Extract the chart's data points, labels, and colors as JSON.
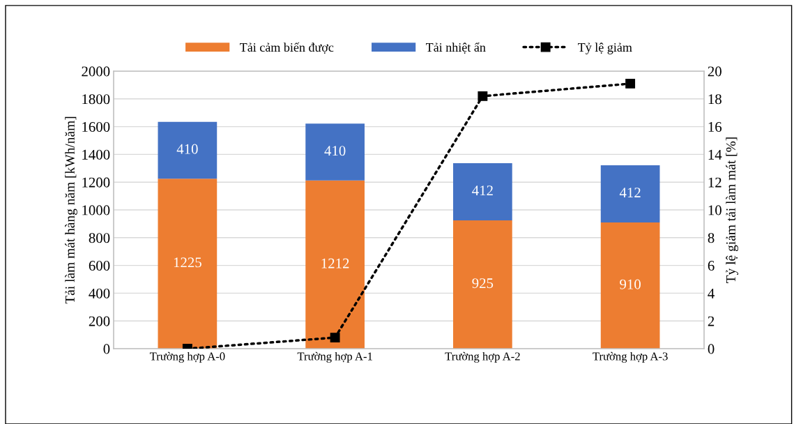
{
  "chart_data": {
    "type": "bar",
    "stacked": true,
    "categories": [
      "Trường hợp A-0",
      "Trường hợp A-1",
      "Trường hợp A-2",
      "Trường hợp A-3"
    ],
    "ylabel": "Tải làm mát hàng năm [kWh/năm]",
    "y2label": "Tỷ lệ giảm tải làm mát [%]",
    "ylim": [
      0,
      2000
    ],
    "yticks": [
      0,
      200,
      400,
      600,
      800,
      1000,
      1200,
      1400,
      1600,
      1800,
      2000
    ],
    "y2lim": [
      0,
      20
    ],
    "y2ticks": [
      0,
      2,
      4,
      6,
      8,
      10,
      12,
      14,
      16,
      18,
      20
    ],
    "grid": "y",
    "legend": "top",
    "series": [
      {
        "name": "Tải cảm biến được",
        "color": "#ed7d31",
        "values": [
          1225,
          1212,
          925,
          910
        ],
        "value_labels": [
          "1225",
          "1212",
          "925",
          "910"
        ]
      },
      {
        "name": "Tải nhiệt ẩn",
        "color": "#4472c4",
        "values": [
          410,
          410,
          412,
          412
        ],
        "value_labels": [
          "410",
          "410",
          "412",
          "412"
        ]
      },
      {
        "name": "Tỷ lệ giảm",
        "type": "line",
        "axis": "y2",
        "color": "#000000",
        "marker": "square",
        "line_style": "dotted",
        "values": [
          0,
          0.8,
          18.2,
          19.1
        ]
      }
    ]
  }
}
